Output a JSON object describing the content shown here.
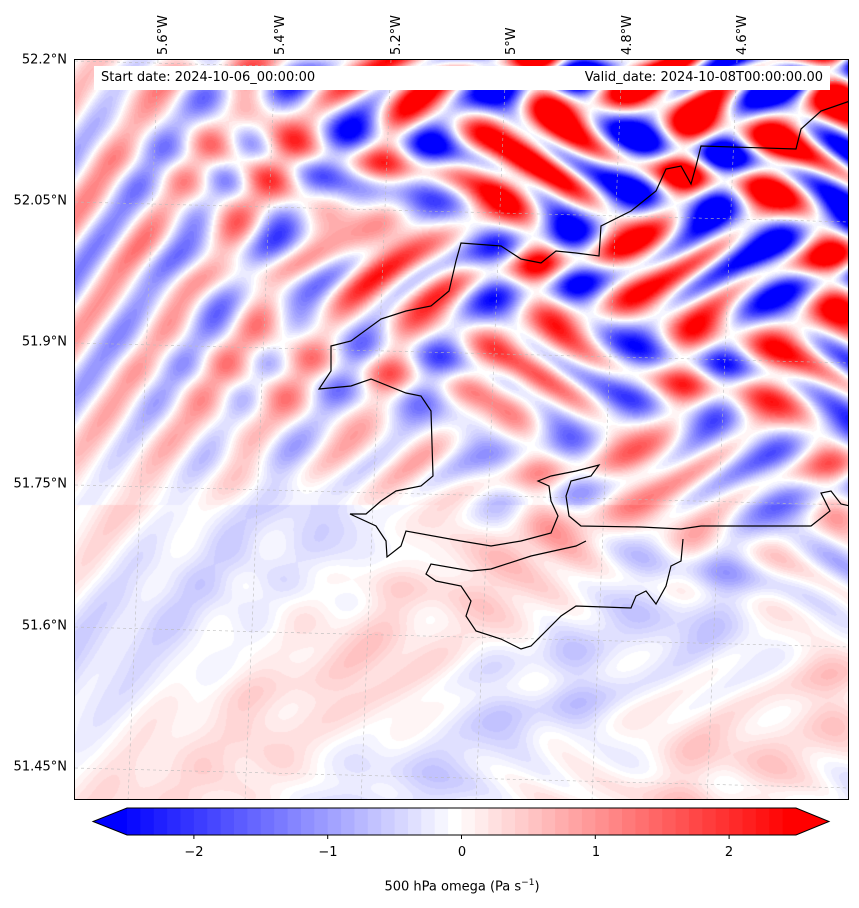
{
  "chart_data": {
    "type": "heatmap",
    "title": "",
    "annotations": {
      "start_date": "Start date: 2024-10-06_00:00:00",
      "valid_date": "Valid_date: 2024-10-08T00:00:00.00"
    },
    "lat_ticks": [
      "52.2°N",
      "52.05°N",
      "51.9°N",
      "51.75°N",
      "51.6°N",
      "51.45°N"
    ],
    "lat_values": [
      52.2,
      52.05,
      51.9,
      51.75,
      51.6,
      51.45
    ],
    "lon_ticks": [
      "5.6°W",
      "5.4°W",
      "5.2°W",
      "5°W",
      "4.8°W",
      "4.6°W"
    ],
    "lon_values": [
      -5.6,
      -5.4,
      -5.2,
      -5.0,
      -4.8,
      -4.6
    ],
    "colorbar": {
      "label": "500 hPa omega (Pa s",
      "label_sup": "−1",
      "label_end": ")",
      "ticks": [
        "−2",
        "−1",
        "0",
        "1",
        "2"
      ],
      "tick_values": [
        -2,
        -1,
        0,
        1,
        2
      ],
      "range": [
        -2.5,
        2.5
      ],
      "step": 0.1,
      "colormap": "bwr",
      "extend": "both"
    },
    "grid": true
  }
}
